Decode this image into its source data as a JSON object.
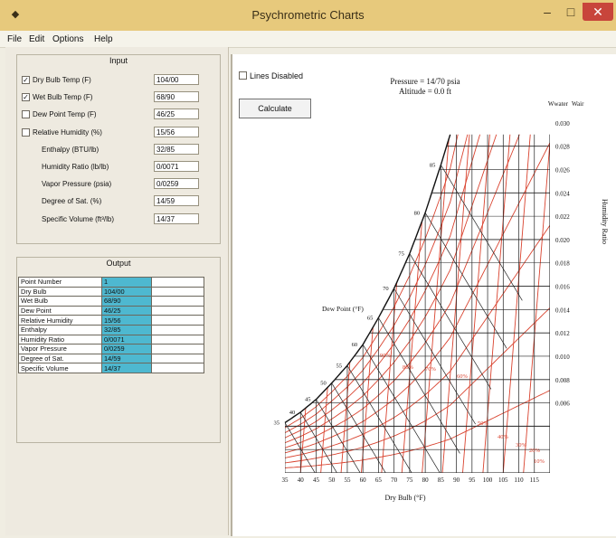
{
  "window": {
    "title": "Psychrometric Charts",
    "icon": "app-icon",
    "min": "–",
    "max": "□",
    "close": "✕"
  },
  "menu": [
    "File",
    "Edit",
    "Options",
    "Help"
  ],
  "input": {
    "title": "Input",
    "fields": [
      {
        "label": "Dry Bulb Temp (F)",
        "value": "104/00",
        "checked": true
      },
      {
        "label": "Wet Bulb Temp (F)",
        "value": "68/90",
        "checked": true
      },
      {
        "label": "Dew Point Temp (F)",
        "value": "46/25",
        "checked": false
      },
      {
        "label": "Relative Humidity (%)",
        "value": "15/56",
        "checked": false
      },
      {
        "label": "Enthalpy (BTU/lb)",
        "value": "32/85"
      },
      {
        "label": "Humidity Ratio (lb/lb)",
        "value": "0/0071"
      },
      {
        "label": "Vapor Pressure (psia)",
        "value": "0/0259"
      },
      {
        "label": "Degree of Sat. (%)",
        "value": "14/59"
      },
      {
        "label": "Specific Volume (ft³/lb)",
        "value": "14/37"
      }
    ]
  },
  "output": {
    "title": "Output",
    "rows": [
      {
        "name": "Point Number",
        "value": "1"
      },
      {
        "name": "Dry Bulb",
        "value": "104/00"
      },
      {
        "name": "Wet Bulb",
        "value": "68/90"
      },
      {
        "name": "Dew Point",
        "value": "46/25"
      },
      {
        "name": "Relative Humidity",
        "value": "15/56"
      },
      {
        "name": "Enthalpy",
        "value": "32/85"
      },
      {
        "name": "Humidity Ratio",
        "value": "0/0071"
      },
      {
        "name": "Vapor Pressure",
        "value": "0/0259"
      },
      {
        "name": "Degree of Sat.",
        "value": "14/59"
      },
      {
        "name": "Specific Volume",
        "value": "14/37"
      }
    ]
  },
  "controls": {
    "lines_disabled": "Lines Disabled",
    "calculate": "Calculate"
  },
  "chart": {
    "pressure": "Pressure = 14/70 psia",
    "altitude": "Altitude = 0.0 ft",
    "x_title": "Dry Bulb (°F)",
    "x_ticks": [
      "35",
      "40",
      "45",
      "50",
      "55",
      "60",
      "65",
      "70",
      "75",
      "80",
      "85",
      "90",
      "95",
      "100",
      "105",
      "110",
      "115"
    ],
    "y_ticks": [
      "0.030",
      "0.028",
      "0.026",
      "0.024",
      "0.022",
      "0.020",
      "0.018",
      "0.016",
      "0.014",
      "0.012",
      "0.010",
      "0.008",
      "0.006"
    ],
    "y_header_left": "Wwater",
    "y_header_right": "Wair",
    "y_side_title": "Humidity Ratio",
    "dew_label": "Dew Point (°F)",
    "sat_labels": [
      "85",
      "80",
      "75",
      "70",
      "65",
      "60",
      "55",
      "50",
      "45",
      "40",
      "35"
    ],
    "rh_labels": [
      "90%",
      "80%",
      "70%",
      "60%",
      "50%",
      "40%",
      "30%",
      "20%",
      "10%"
    ]
  }
}
